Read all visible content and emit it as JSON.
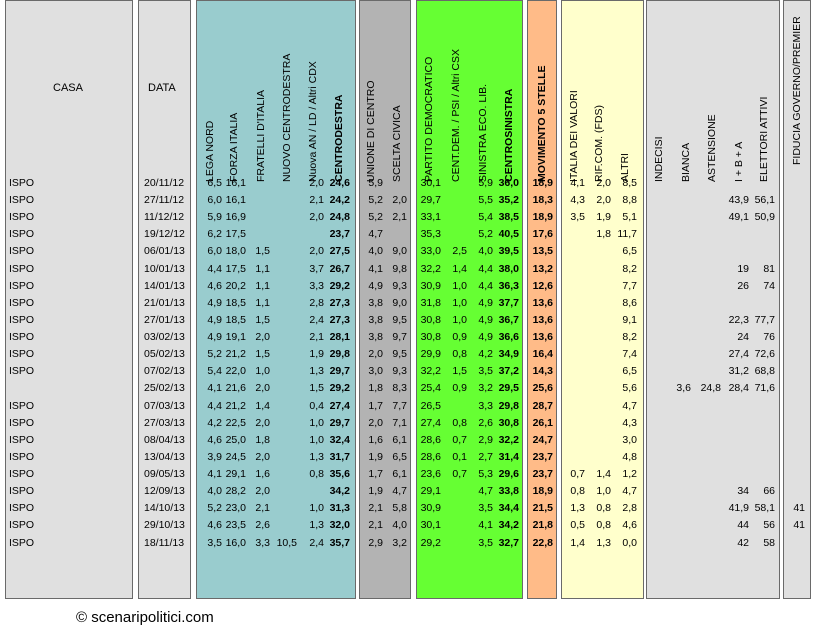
{
  "header": {
    "casa": "CASA",
    "data": "DATA"
  },
  "groups": {
    "centrodestra": {
      "color": "#99ccce"
    },
    "centro": {
      "color": "#b3b3b3"
    },
    "centrosinistra": {
      "color": "#66ff33"
    },
    "m5s": {
      "color": "#ffbb88"
    },
    "sinistra": {
      "color": "#ffffcc"
    },
    "other": {
      "color": "#e0e0e0"
    }
  },
  "columns": [
    {
      "key": "lega",
      "label": "LEGA NORD",
      "bold": false
    },
    {
      "key": "fi",
      "label": "FORZA ITALIA",
      "bold": false
    },
    {
      "key": "fdi",
      "label": "FRATELLI D'ITALIA",
      "bold": false
    },
    {
      "key": "ncd",
      "label": "NUOVO CENTRODESTRA",
      "bold": false
    },
    {
      "key": "an",
      "label": "Nuova AN / LD / Altri CDX",
      "bold": false
    },
    {
      "key": "cdx",
      "label": "CENTRODESTRA",
      "bold": true
    },
    {
      "key": "udc",
      "label": "UNIONE DI CENTRO",
      "bold": false
    },
    {
      "key": "sc",
      "label": "SCELTA CIVICA",
      "bold": false
    },
    {
      "key": "pd",
      "label": "PARTITO DEMOCRATICO",
      "bold": false
    },
    {
      "key": "cd",
      "label": "CENT.DEM. / PSI / Altri CSX",
      "bold": false
    },
    {
      "key": "sel",
      "label": "SINISTRA ECO. LIB.",
      "bold": false
    },
    {
      "key": "csx",
      "label": "CENTROSINISTRA",
      "bold": true
    },
    {
      "key": "m5s",
      "label": "MOVIMENTO 5 STELLE",
      "bold": true
    },
    {
      "key": "idv",
      "label": "ITALIA DEI VALORI",
      "bold": false
    },
    {
      "key": "rif",
      "label": "RIF.COM. (FDS)",
      "bold": false
    },
    {
      "key": "altri",
      "label": "ALTRI",
      "bold": false
    },
    {
      "key": "ind",
      "label": "INDECISI",
      "bold": false
    },
    {
      "key": "bia",
      "label": "BIANCA",
      "bold": false
    },
    {
      "key": "ast",
      "label": "ASTENSIONE",
      "bold": false
    },
    {
      "key": "iba",
      "label": "I + B + A",
      "bold": false
    },
    {
      "key": "ele",
      "label": "ELETTORI ATTIVI",
      "bold": false
    },
    {
      "key": "fid",
      "label": "FIDUCIA GOVERNO/PREMIER",
      "bold": false
    }
  ],
  "rows": [
    {
      "casa": "ISPO",
      "data": "20/11/12",
      "lega": "6,5",
      "fi": "16,1",
      "fdi": "",
      "ncd": "",
      "an": "2,0",
      "cdx": "24,6",
      "udc": "5,9",
      "sc": "",
      "pd": "30,1",
      "cd": "",
      "sel": "5,9",
      "csx": "36,0",
      "m5s": "18,9",
      "idv": "4,1",
      "rif": "2,0",
      "altri": "8,5",
      "ind": "",
      "bia": "",
      "ast": "",
      "iba": "",
      "ele": "",
      "fid": ""
    },
    {
      "casa": "ISPO",
      "data": "27/11/12",
      "lega": "6,0",
      "fi": "16,1",
      "fdi": "",
      "ncd": "",
      "an": "2,1",
      "cdx": "24,2",
      "udc": "5,2",
      "sc": "2,0",
      "pd": "29,7",
      "cd": "",
      "sel": "5,5",
      "csx": "35,2",
      "m5s": "18,3",
      "idv": "4,3",
      "rif": "2,0",
      "altri": "8,8",
      "ind": "",
      "bia": "",
      "ast": "",
      "iba": "43,9",
      "ele": "56,1",
      "fid": ""
    },
    {
      "casa": "ISPO",
      "data": "11/12/12",
      "lega": "5,9",
      "fi": "16,9",
      "fdi": "",
      "ncd": "",
      "an": "2,0",
      "cdx": "24,8",
      "udc": "5,2",
      "sc": "2,1",
      "pd": "33,1",
      "cd": "",
      "sel": "5,4",
      "csx": "38,5",
      "m5s": "18,9",
      "idv": "3,5",
      "rif": "1,9",
      "altri": "5,1",
      "ind": "",
      "bia": "",
      "ast": "",
      "iba": "49,1",
      "ele": "50,9",
      "fid": ""
    },
    {
      "casa": "ISPO",
      "data": "19/12/12",
      "lega": "6,2",
      "fi": "17,5",
      "fdi": "",
      "ncd": "",
      "an": "",
      "cdx": "23,7",
      "udc": "4,7",
      "sc": "",
      "pd": "35,3",
      "cd": "",
      "sel": "5,2",
      "csx": "40,5",
      "m5s": "17,6",
      "idv": "",
      "rif": "1,8",
      "altri": "11,7",
      "ind": "",
      "bia": "",
      "ast": "",
      "iba": "",
      "ele": "",
      "fid": ""
    },
    {
      "casa": "ISPO",
      "data": "06/01/13",
      "lega": "6,0",
      "fi": "18,0",
      "fdi": "1,5",
      "ncd": "",
      "an": "2,0",
      "cdx": "27,5",
      "udc": "4,0",
      "sc": "9,0",
      "pd": "33,0",
      "cd": "2,5",
      "sel": "4,0",
      "csx": "39,5",
      "m5s": "13,5",
      "idv": "",
      "rif": "",
      "altri": "6,5",
      "ind": "",
      "bia": "",
      "ast": "",
      "iba": "",
      "ele": "",
      "fid": ""
    },
    {
      "casa": "ISPO",
      "data": "10/01/13",
      "lega": "4,4",
      "fi": "17,5",
      "fdi": "1,1",
      "ncd": "",
      "an": "3,7",
      "cdx": "26,7",
      "udc": "4,1",
      "sc": "9,8",
      "pd": "32,2",
      "cd": "1,4",
      "sel": "4,4",
      "csx": "38,0",
      "m5s": "13,2",
      "idv": "",
      "rif": "",
      "altri": "8,2",
      "ind": "",
      "bia": "",
      "ast": "",
      "iba": "19",
      "ele": "81",
      "fid": ""
    },
    {
      "casa": "ISPO",
      "data": "14/01/13",
      "lega": "4,6",
      "fi": "20,2",
      "fdi": "1,1",
      "ncd": "",
      "an": "3,3",
      "cdx": "29,2",
      "udc": "4,9",
      "sc": "9,3",
      "pd": "30,9",
      "cd": "1,0",
      "sel": "4,4",
      "csx": "36,3",
      "m5s": "12,6",
      "idv": "",
      "rif": "",
      "altri": "7,7",
      "ind": "",
      "bia": "",
      "ast": "",
      "iba": "26",
      "ele": "74",
      "fid": ""
    },
    {
      "casa": "ISPO",
      "data": "21/01/13",
      "lega": "4,9",
      "fi": "18,5",
      "fdi": "1,1",
      "ncd": "",
      "an": "2,8",
      "cdx": "27,3",
      "udc": "3,8",
      "sc": "9,0",
      "pd": "31,8",
      "cd": "1,0",
      "sel": "4,9",
      "csx": "37,7",
      "m5s": "13,6",
      "idv": "",
      "rif": "",
      "altri": "8,6",
      "ind": "",
      "bia": "",
      "ast": "",
      "iba": "",
      "ele": "",
      "fid": ""
    },
    {
      "casa": "ISPO",
      "data": "27/01/13",
      "lega": "4,9",
      "fi": "18,5",
      "fdi": "1,5",
      "ncd": "",
      "an": "2,4",
      "cdx": "27,3",
      "udc": "3,8",
      "sc": "9,5",
      "pd": "30,8",
      "cd": "1,0",
      "sel": "4,9",
      "csx": "36,7",
      "m5s": "13,6",
      "idv": "",
      "rif": "",
      "altri": "9,1",
      "ind": "",
      "bia": "",
      "ast": "",
      "iba": "22,3",
      "ele": "77,7",
      "fid": ""
    },
    {
      "casa": "ISPO",
      "data": "03/02/13",
      "lega": "4,9",
      "fi": "19,1",
      "fdi": "2,0",
      "ncd": "",
      "an": "2,1",
      "cdx": "28,1",
      "udc": "3,8",
      "sc": "9,7",
      "pd": "30,8",
      "cd": "0,9",
      "sel": "4,9",
      "csx": "36,6",
      "m5s": "13,6",
      "idv": "",
      "rif": "",
      "altri": "8,2",
      "ind": "",
      "bia": "",
      "ast": "",
      "iba": "24",
      "ele": "76",
      "fid": ""
    },
    {
      "casa": "ISPO",
      "data": "05/02/13",
      "lega": "5,2",
      "fi": "21,2",
      "fdi": "1,5",
      "ncd": "",
      "an": "1,9",
      "cdx": "29,8",
      "udc": "2,0",
      "sc": "9,5",
      "pd": "29,9",
      "cd": "0,8",
      "sel": "4,2",
      "csx": "34,9",
      "m5s": "16,4",
      "idv": "",
      "rif": "",
      "altri": "7,4",
      "ind": "",
      "bia": "",
      "ast": "",
      "iba": "27,4",
      "ele": "72,6",
      "fid": ""
    },
    {
      "casa": "ISPO",
      "data": "07/02/13",
      "lega": "5,4",
      "fi": "22,0",
      "fdi": "1,0",
      "ncd": "",
      "an": "1,3",
      "cdx": "29,7",
      "udc": "3,0",
      "sc": "9,3",
      "pd": "32,2",
      "cd": "1,5",
      "sel": "3,5",
      "csx": "37,2",
      "m5s": "14,3",
      "idv": "",
      "rif": "",
      "altri": "6,5",
      "ind": "",
      "bia": "",
      "ast": "",
      "iba": "31,2",
      "ele": "68,8",
      "fid": ""
    },
    {
      "casa": "",
      "data": "25/02/13",
      "lega": "4,1",
      "fi": "21,6",
      "fdi": "2,0",
      "ncd": "",
      "an": "1,5",
      "cdx": "29,2",
      "udc": "1,8",
      "sc": "8,3",
      "pd": "25,4",
      "cd": "0,9",
      "sel": "3,2",
      "csx": "29,5",
      "m5s": "25,6",
      "idv": "",
      "rif": "",
      "altri": "5,6",
      "ind": "",
      "bia": "3,6",
      "ast": "24,8",
      "iba": "28,4",
      "ele": "71,6",
      "fid": ""
    },
    {
      "casa": "ISPO",
      "data": "07/03/13",
      "lega": "4,4",
      "fi": "21,2",
      "fdi": "1,4",
      "ncd": "",
      "an": "0,4",
      "cdx": "27,4",
      "udc": "1,7",
      "sc": "7,7",
      "pd": "26,5",
      "cd": "",
      "sel": "3,3",
      "csx": "29,8",
      "m5s": "28,7",
      "idv": "",
      "rif": "",
      "altri": "4,7",
      "ind": "",
      "bia": "",
      "ast": "",
      "iba": "",
      "ele": "",
      "fid": ""
    },
    {
      "casa": "ISPO",
      "data": "27/03/13",
      "lega": "4,2",
      "fi": "22,5",
      "fdi": "2,0",
      "ncd": "",
      "an": "1,0",
      "cdx": "29,7",
      "udc": "2,0",
      "sc": "7,1",
      "pd": "27,4",
      "cd": "0,8",
      "sel": "2,6",
      "csx": "30,8",
      "m5s": "26,1",
      "idv": "",
      "rif": "",
      "altri": "4,3",
      "ind": "",
      "bia": "",
      "ast": "",
      "iba": "",
      "ele": "",
      "fid": ""
    },
    {
      "casa": "ISPO",
      "data": "08/04/13",
      "lega": "4,6",
      "fi": "25,0",
      "fdi": "1,8",
      "ncd": "",
      "an": "1,0",
      "cdx": "32,4",
      "udc": "1,6",
      "sc": "6,1",
      "pd": "28,6",
      "cd": "0,7",
      "sel": "2,9",
      "csx": "32,2",
      "m5s": "24,7",
      "idv": "",
      "rif": "",
      "altri": "3,0",
      "ind": "",
      "bia": "",
      "ast": "",
      "iba": "",
      "ele": "",
      "fid": ""
    },
    {
      "casa": "ISPO",
      "data": "13/04/13",
      "lega": "3,9",
      "fi": "24,5",
      "fdi": "2,0",
      "ncd": "",
      "an": "1,3",
      "cdx": "31,7",
      "udc": "1,9",
      "sc": "6,5",
      "pd": "28,6",
      "cd": "0,1",
      "sel": "2,7",
      "csx": "31,4",
      "m5s": "23,7",
      "idv": "",
      "rif": "",
      "altri": "4,8",
      "ind": "",
      "bia": "",
      "ast": "",
      "iba": "",
      "ele": "",
      "fid": ""
    },
    {
      "casa": "ISPO",
      "data": "09/05/13",
      "lega": "4,1",
      "fi": "29,1",
      "fdi": "1,6",
      "ncd": "",
      "an": "0,8",
      "cdx": "35,6",
      "udc": "1,7",
      "sc": "6,1",
      "pd": "23,6",
      "cd": "0,7",
      "sel": "5,3",
      "csx": "29,6",
      "m5s": "23,7",
      "idv": "0,7",
      "rif": "1,4",
      "altri": "1,2",
      "ind": "",
      "bia": "",
      "ast": "",
      "iba": "",
      "ele": "",
      "fid": ""
    },
    {
      "casa": "ISPO",
      "data": "12/09/13",
      "lega": "4,0",
      "fi": "28,2",
      "fdi": "2,0",
      "ncd": "",
      "an": "",
      "cdx": "34,2",
      "udc": "1,9",
      "sc": "4,7",
      "pd": "29,1",
      "cd": "",
      "sel": "4,7",
      "csx": "33,8",
      "m5s": "18,9",
      "idv": "0,8",
      "rif": "1,0",
      "altri": "4,7",
      "ind": "",
      "bia": "",
      "ast": "",
      "iba": "34",
      "ele": "66",
      "fid": ""
    },
    {
      "casa": "ISPO",
      "data": "14/10/13",
      "lega": "5,2",
      "fi": "23,0",
      "fdi": "2,1",
      "ncd": "",
      "an": "1,0",
      "cdx": "31,3",
      "udc": "2,1",
      "sc": "5,8",
      "pd": "30,9",
      "cd": "",
      "sel": "3,5",
      "csx": "34,4",
      "m5s": "21,5",
      "idv": "1,3",
      "rif": "0,8",
      "altri": "2,8",
      "ind": "",
      "bia": "",
      "ast": "",
      "iba": "41,9",
      "ele": "58,1",
      "fid": "41"
    },
    {
      "casa": "ISPO",
      "data": "29/10/13",
      "lega": "4,6",
      "fi": "23,5",
      "fdi": "2,6",
      "ncd": "",
      "an": "1,3",
      "cdx": "32,0",
      "udc": "2,1",
      "sc": "4,0",
      "pd": "30,1",
      "cd": "",
      "sel": "4,1",
      "csx": "34,2",
      "m5s": "21,8",
      "idv": "0,5",
      "rif": "0,8",
      "altri": "4,6",
      "ind": "",
      "bia": "",
      "ast": "",
      "iba": "44",
      "ele": "56",
      "fid": "41"
    },
    {
      "casa": "ISPO",
      "data": "18/11/13",
      "lega": "3,5",
      "fi": "16,0",
      "fdi": "3,3",
      "ncd": "10,5",
      "an": "2,4",
      "cdx": "35,7",
      "udc": "2,9",
      "sc": "3,2",
      "pd": "29,2",
      "cd": "",
      "sel": "3,5",
      "csx": "32,7",
      "m5s": "22,8",
      "idv": "1,4",
      "rif": "1,3",
      "altri": "0,0",
      "ind": "",
      "bia": "",
      "ast": "",
      "iba": "42",
      "ele": "58",
      "fid": ""
    }
  ],
  "footer": "© scenaripolitici.com"
}
